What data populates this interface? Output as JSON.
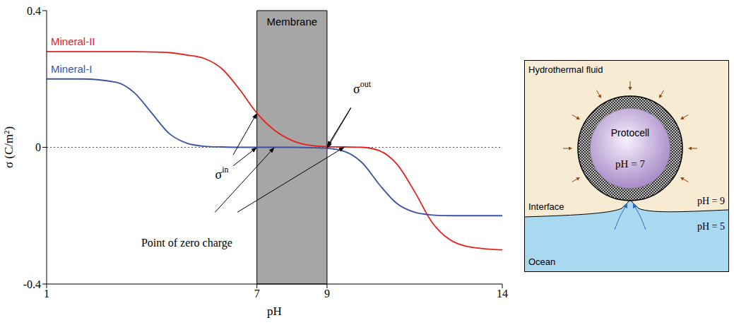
{
  "chart_data": {
    "type": "line",
    "xlabel": "pH",
    "ylabel": "σ (C/m²)",
    "x": [
      1,
      2,
      3,
      3.5,
      4,
      4.5,
      5,
      5.5,
      6,
      6.5,
      7,
      7.5,
      8,
      8.5,
      9,
      9.5,
      10,
      10.5,
      11,
      11.5,
      12,
      12.5,
      13,
      14
    ],
    "series": [
      {
        "name": "Mineral-II",
        "color": "#e4211c",
        "values": [
          0.28,
          0.28,
          0.28,
          0.28,
          0.279,
          0.277,
          0.27,
          0.26,
          0.23,
          0.17,
          0.1,
          0.05,
          0.02,
          0.006,
          0.002,
          0.001,
          0,
          -0.01,
          -0.05,
          -0.13,
          -0.22,
          -0.27,
          -0.29,
          -0.3
        ]
      },
      {
        "name": "Mineral-I",
        "color": "#3a53a4",
        "values": [
          0.2,
          0.2,
          0.19,
          0.16,
          0.1,
          0.04,
          0.012,
          0.003,
          0.001,
          0,
          0,
          0,
          0,
          -0.001,
          -0.003,
          -0.012,
          -0.045,
          -0.11,
          -0.165,
          -0.19,
          -0.198,
          -0.2,
          -0.2,
          -0.2
        ]
      }
    ],
    "xlim": [
      1,
      14
    ],
    "xticks": [
      1,
      7,
      9,
      14
    ],
    "ylim": [
      -0.4,
      0.4
    ],
    "yticks": [
      -0.4,
      0,
      0.4
    ],
    "grid": false,
    "shaded_regions": [
      {
        "x": [
          7,
          9
        ],
        "label": "Membrane",
        "color": "#a6a6a6"
      }
    ],
    "reference_lines": [
      {
        "y": 0,
        "line_style": "dotted"
      }
    ],
    "annotations": [
      {
        "text": "σ",
        "superscript": "in",
        "x": 6.0,
        "y": -0.08,
        "targets": [
          [
            7,
            0.1
          ],
          [
            7,
            0
          ]
        ]
      },
      {
        "text": "σ",
        "superscript": "out",
        "x": 10.0,
        "y": 0.17,
        "targets": [
          [
            9,
            0.002
          ],
          [
            9,
            -0.003
          ]
        ]
      },
      {
        "text": "Point of zero charge",
        "x": 5.0,
        "y": -0.28,
        "targets": [
          [
            7.5,
            0
          ],
          [
            9.5,
            0.001
          ]
        ]
      }
    ]
  },
  "diagram": {
    "hydrothermal_fluid": {
      "label": "Hydrothermal fluid",
      "ph": "pH = 9"
    },
    "ocean": {
      "label": "Ocean",
      "ph": "pH = 5"
    },
    "interface": "Interface",
    "protocell": {
      "label": "Protocell",
      "ph": "pH = 7"
    }
  }
}
